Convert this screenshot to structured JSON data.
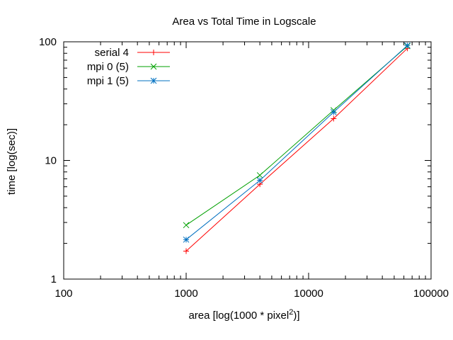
{
  "chart_data": {
    "type": "line",
    "title": "Area vs Total Time in Logscale",
    "xlabel": "area [log(1000 * pixel",
    "xlabel_sup": "2",
    "xlabel_end": ")]",
    "ylabel": "time [log(sec)]",
    "xscale": "log",
    "yscale": "log",
    "xlim": [
      100,
      100000
    ],
    "ylim": [
      1,
      100
    ],
    "grid": false,
    "legend_position": "top-left",
    "x_ticks": [
      {
        "value": 100,
        "label": "100"
      },
      {
        "value": 1000,
        "label": "1000"
      },
      {
        "value": 10000,
        "label": "10000"
      },
      {
        "value": 100000,
        "label": "100000"
      }
    ],
    "y_ticks": [
      {
        "value": 1,
        "label": "1"
      },
      {
        "value": 10,
        "label": "10"
      },
      {
        "value": 100,
        "label": "100"
      }
    ],
    "series": [
      {
        "name": "serial 4",
        "color": "#ff0000",
        "marker": "plus",
        "x": [
          1000,
          4000,
          16000,
          64000
        ],
        "y": [
          1.72,
          6.3,
          22.5,
          88.0
        ]
      },
      {
        "name": "mpi 0 (5)",
        "color": "#00a000",
        "marker": "cross",
        "x": [
          1000,
          4000,
          16000,
          64000
        ],
        "y": [
          2.85,
          7.5,
          26.5,
          92.0
        ]
      },
      {
        "name": "mpi 1 (5)",
        "color": "#0070c0",
        "marker": "star",
        "x": [
          1000,
          4000,
          16000,
          64000
        ],
        "y": [
          2.15,
          6.8,
          25.5,
          93.0
        ]
      }
    ]
  }
}
